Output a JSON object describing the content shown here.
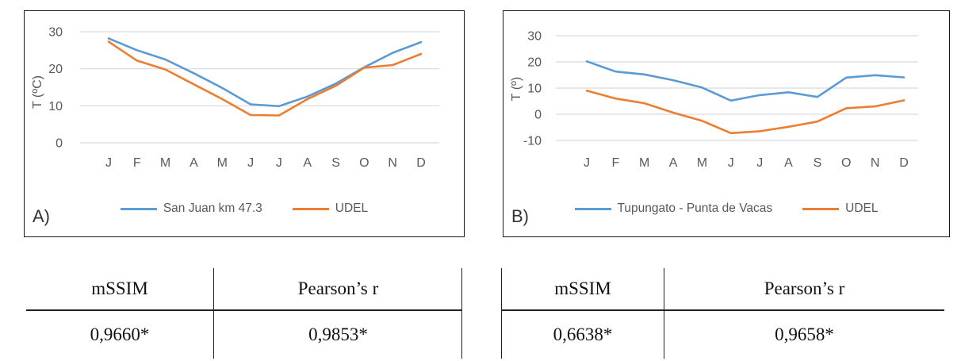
{
  "colors": {
    "blue": "#5B9BD5",
    "orange": "#ED7D31",
    "grid": "#D9D9D9",
    "axis_text": "#595959",
    "table_line": "#222222"
  },
  "chart_data": [
    {
      "type": "line",
      "panel_label": "A)",
      "ylabel": "T (ºC)",
      "categories": [
        "J",
        "F",
        "M",
        "A",
        "M",
        "J",
        "J",
        "A",
        "S",
        "O",
        "N",
        "D"
      ],
      "y_ticks": [
        30,
        20,
        10,
        0
      ],
      "ylim": [
        -5,
        32
      ],
      "grid": true,
      "legend_position": "bottom",
      "series": [
        {
          "name": "San Juan km 47.3",
          "color": "#5B9BD5",
          "values": [
            28.2,
            25.0,
            22.5,
            18.8,
            14.8,
            10.4,
            9.9,
            12.5,
            16.0,
            20.4,
            24.3,
            27.2
          ]
        },
        {
          "name": "UDEL",
          "color": "#ED7D31",
          "values": [
            27.3,
            22.2,
            19.8,
            15.8,
            11.8,
            7.5,
            7.4,
            11.8,
            15.4,
            20.3,
            21.0,
            24.0
          ]
        }
      ]
    },
    {
      "type": "line",
      "panel_label": "B)",
      "ylabel": "T (º)",
      "categories": [
        "J",
        "F",
        "M",
        "A",
        "M",
        "J",
        "J",
        "A",
        "S",
        "O",
        "N",
        "D"
      ],
      "y_ticks": [
        30,
        20,
        10,
        0,
        -10
      ],
      "ylim": [
        -14,
        34
      ],
      "grid": true,
      "legend_position": "bottom",
      "series": [
        {
          "name": "Tupungato - Punta de Vacas",
          "color": "#5B9BD5",
          "values": [
            20.2,
            16.3,
            15.2,
            13.0,
            10.2,
            5.2,
            7.3,
            8.4,
            6.6,
            14.0,
            14.9,
            14.1
          ]
        },
        {
          "name": "UDEL",
          "color": "#ED7D31",
          "values": [
            9.0,
            6.0,
            4.2,
            0.6,
            -2.5,
            -7.2,
            -6.5,
            -4.8,
            -2.8,
            2.3,
            3.0,
            5.3
          ]
        }
      ]
    }
  ],
  "tables": [
    {
      "headers": [
        "mSSIM",
        "Pearson’s r"
      ],
      "values": [
        "0,9660*",
        "0,9853*"
      ]
    },
    {
      "headers": [
        "mSSIM",
        "Pearson’s r"
      ],
      "values": [
        "0,6638*",
        "0,9658*"
      ]
    }
  ]
}
